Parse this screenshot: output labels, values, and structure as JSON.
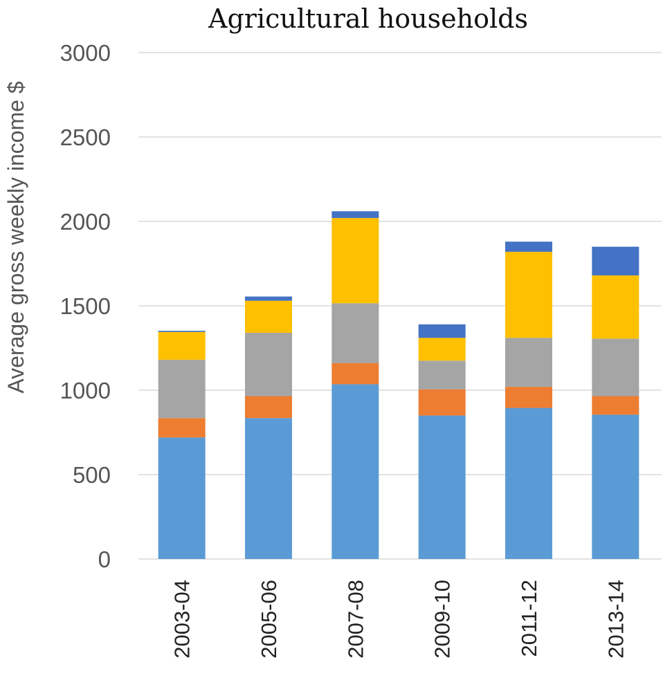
{
  "chart_data": {
    "type": "bar",
    "stacked": true,
    "title": "Agricultural households",
    "xlabel": "",
    "ylabel": "Average gross weekly income $",
    "ylim": [
      0,
      3000
    ],
    "yticks": [
      0,
      500,
      1000,
      1500,
      2000,
      2500,
      3000
    ],
    "grid": true,
    "legend": "none",
    "categories": [
      "2003-04",
      "2005-06",
      "2007-08",
      "2009-10",
      "2011-12",
      "2013-14"
    ],
    "series": [
      {
        "color": "#5B9BD5",
        "values": [
          720,
          835,
          1035,
          850,
          895,
          855
        ]
      },
      {
        "color": "#ED7D31",
        "values": [
          115,
          130,
          125,
          155,
          125,
          110
        ]
      },
      {
        "color": "#A5A5A5",
        "values": [
          345,
          375,
          355,
          170,
          290,
          340
        ]
      },
      {
        "color": "#FFC000",
        "values": [
          165,
          190,
          505,
          135,
          510,
          375
        ]
      },
      {
        "color": "#4472C4",
        "values": [
          7,
          25,
          40,
          80,
          60,
          170
        ]
      }
    ]
  }
}
